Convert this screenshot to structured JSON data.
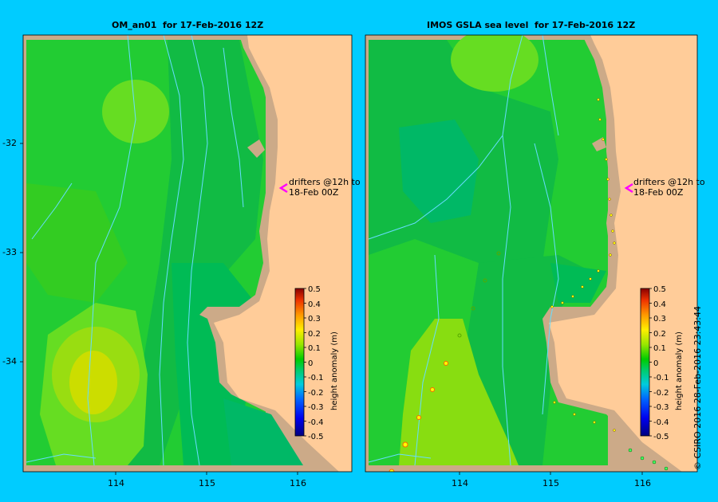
{
  "panels": [
    {
      "title": "OM_an01  for 17-Feb-2016 12Z",
      "annotation": [
        "drifters @12h to",
        "18-Feb 00Z"
      ]
    },
    {
      "title": "IMOS GSLA sea level  for 17-Feb-2016 12Z",
      "annotation": [
        "drifters @12h to",
        "18-Feb 00Z"
      ]
    }
  ],
  "latitude_labels": [
    "-32",
    "-33",
    "-34"
  ],
  "longitude_labels": [
    "114",
    "115",
    "116"
  ],
  "colorbar": {
    "label": "height anomaly (m)",
    "ticks": [
      "0.5",
      "0.4",
      "0.3",
      "0.2",
      "0.1",
      "0",
      "-0.1",
      "-0.2",
      "-0.3",
      "-0.4",
      "-0.5"
    ],
    "range": [
      -0.5,
      0.5
    ]
  },
  "credit": "© CSIRO 2016   28-Feb-2016 23:43:44",
  "colors": {
    "background": "#00ccff",
    "land": "#ffcc99",
    "shelf": "#ccaa88",
    "drifter_marker": "#ff00ff"
  }
}
